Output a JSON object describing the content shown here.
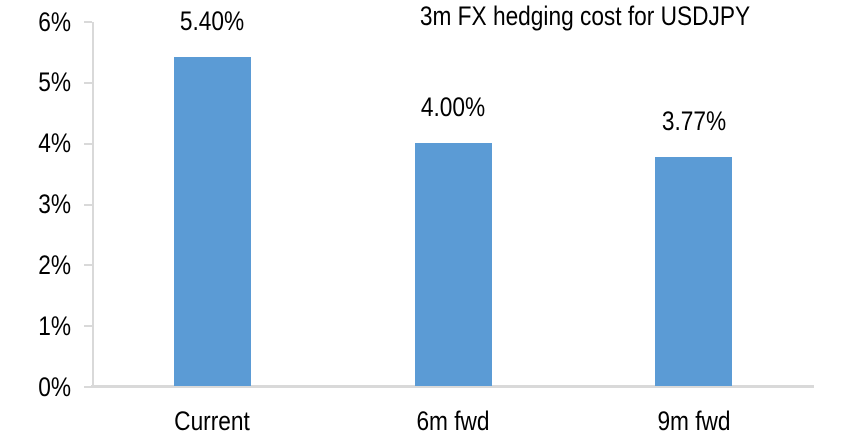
{
  "chart_data": {
    "type": "bar",
    "title": "3m FX hedging cost for USDJPY",
    "categories": [
      "Current",
      "6m fwd",
      "9m fwd"
    ],
    "values": [
      5.4,
      4.0,
      3.77
    ],
    "data_labels": [
      "5.40%",
      "4.00%",
      "3.77%"
    ],
    "xlabel": "",
    "ylabel": "",
    "ylim": [
      0,
      6
    ],
    "ytick_labels": [
      "0%",
      "1%",
      "2%",
      "3%",
      "4%",
      "5%",
      "6%"
    ],
    "grid": false,
    "legend": "none",
    "colors": {
      "bar": "#5B9BD5",
      "axis": "#D9D9D9",
      "text": "#000000",
      "background": "#FFFFFF"
    }
  }
}
